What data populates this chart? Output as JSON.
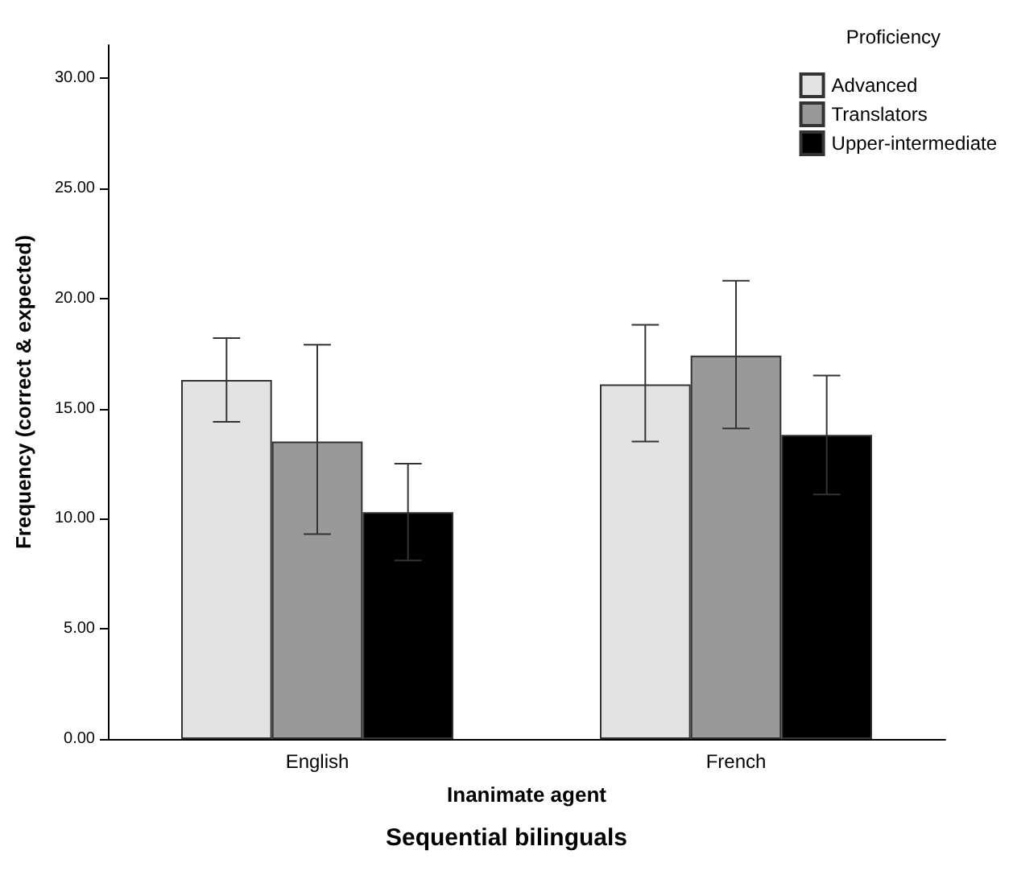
{
  "chart_data": {
    "type": "bar",
    "title": "Sequential bilinguals",
    "xlabel": "Inanimate agent",
    "ylabel": "Frequency (correct & expected)",
    "legend_title": "Proficiency",
    "categories": [
      "English",
      "French"
    ],
    "series": [
      {
        "name": "Advanced",
        "color": "#e3e3e3",
        "values": [
          16.3,
          16.1
        ],
        "errors": [
          [
            14.4,
            18.2
          ],
          [
            13.5,
            18.8
          ]
        ]
      },
      {
        "name": "Translators",
        "color": "#999999",
        "values": [
          13.5,
          17.4
        ],
        "errors": [
          [
            9.3,
            17.9
          ],
          [
            14.1,
            20.8
          ]
        ]
      },
      {
        "name": "Upper-intermediate",
        "color": "#000000",
        "values": [
          10.3,
          13.8
        ],
        "errors": [
          [
            8.1,
            12.5
          ],
          [
            11.1,
            16.5
          ]
        ]
      }
    ],
    "ylim": [
      0,
      31.5
    ],
    "yticks": [
      {
        "value": 0,
        "label": "0.00"
      },
      {
        "value": 5,
        "label": "5.00"
      },
      {
        "value": 10,
        "label": "10.00"
      },
      {
        "value": 15,
        "label": "15.00"
      },
      {
        "value": 20,
        "label": "20.00"
      },
      {
        "value": 25,
        "label": "25.00"
      },
      {
        "value": 30,
        "label": "30.00"
      }
    ],
    "grid": false,
    "legend": "top right"
  }
}
